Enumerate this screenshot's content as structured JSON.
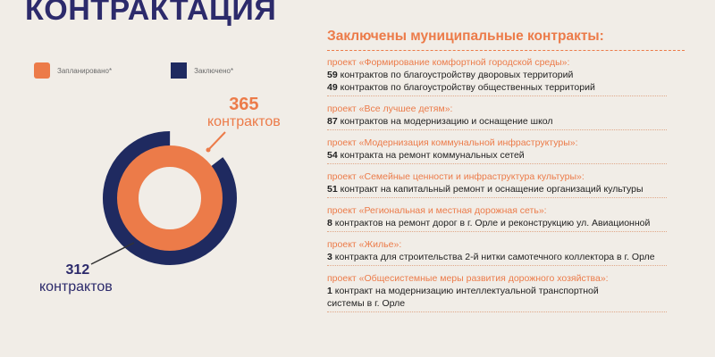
{
  "page_title": "КОНТРАКТАЦИЯ",
  "colors": {
    "planned": "#ec7b49",
    "concluded": "#1f2a60",
    "accent": "#ec7b49",
    "title": "#2c2a6b"
  },
  "legend": {
    "planned": "Запланировано*",
    "concluded": "Заключено*"
  },
  "chart_data": {
    "type": "donut",
    "series": [
      {
        "name": "Запланировано*",
        "value": 365,
        "label_num": "365",
        "label_word": "контрактов"
      },
      {
        "name": "Заключено*",
        "value": 312,
        "label_num": "312",
        "label_word": "контрактов"
      }
    ]
  },
  "right": {
    "heading": "Заключены муниципальные контракты:",
    "projects": [
      {
        "title": "проект «Формирование комфортной городской среды»:",
        "lines": [
          {
            "count": "59",
            "text": " контрактов по благоустройству дворовых территорий"
          },
          {
            "count": "49",
            "text": " контрактов по благоустройству общественных территорий"
          }
        ]
      },
      {
        "title": "проект «Все лучшее детям»:",
        "lines": [
          {
            "count": "87",
            "text": " контрактов на модернизацию и оснащение школ"
          }
        ]
      },
      {
        "title": "проект «Модернизация коммунальной инфраструктуры»:",
        "lines": [
          {
            "count": "54",
            "text": " контракта на ремонт коммунальных сетей"
          }
        ]
      },
      {
        "title": "проект «Семейные ценности и инфраструктура культуры»:",
        "lines": [
          {
            "count": "51",
            "text": " контракт на капитальный ремонт и оснащение организаций культуры"
          }
        ]
      },
      {
        "title": "проект «Региональная и местная дорожная сеть»:",
        "lines": [
          {
            "count": "8",
            "text": " контрактов на ремонт дорог в г. Орле и реконструкцию ул. Авиационной"
          }
        ]
      },
      {
        "title": "проект «Жилье»:",
        "lines": [
          {
            "count": "3",
            "text": " контракта для строительства 2-й нитки самотечного коллектора в г. Орле"
          }
        ]
      },
      {
        "title": "проект «Общесистемные меры развития дорожного хозяйства»:",
        "lines": [
          {
            "count": "1",
            "text": " контракт на модернизацию интеллектуальной транспортной"
          },
          {
            "count": "",
            "text": "системы в г. Орле"
          }
        ]
      }
    ]
  }
}
